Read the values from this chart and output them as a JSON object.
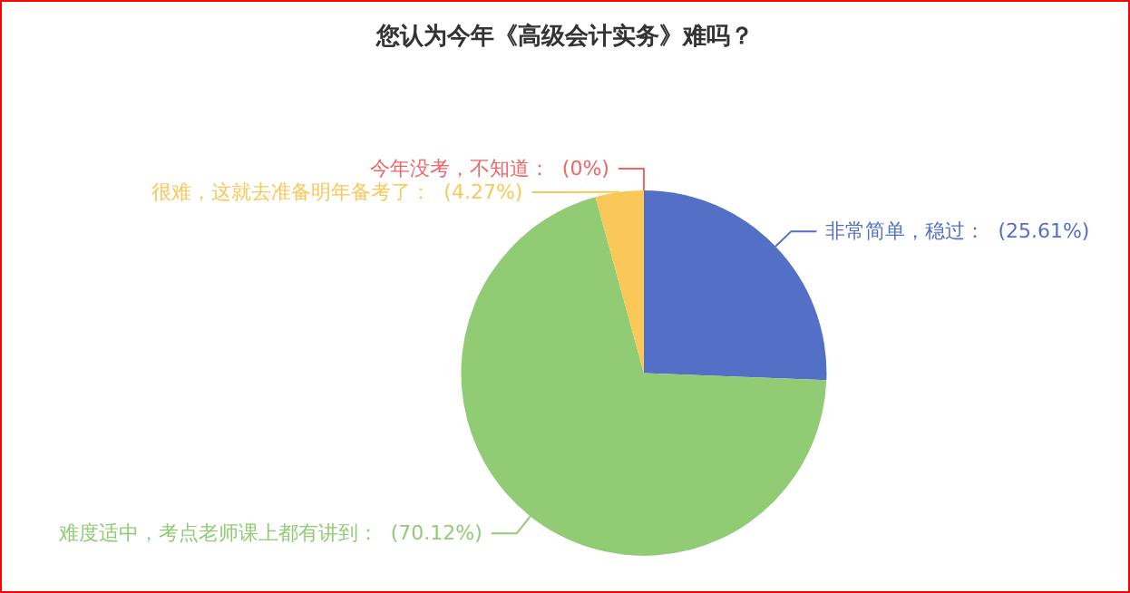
{
  "chart_data": {
    "type": "pie",
    "title": "您认为今年《高级会计实务》难吗？",
    "categories": [
      "非常简单，稳过",
      "难度适中，考点老师课上都有讲到",
      "很难，这就去准备明年备考了",
      "今年没考，不知道"
    ],
    "values": [
      25.61,
      70.12,
      4.27,
      0
    ],
    "value_labels": [
      "(25.61%)",
      "(70.12%)",
      "(4.27%)",
      "(0%)"
    ],
    "colors": [
      "#5470c6",
      "#91cc75",
      "#fac858",
      "#ee6666"
    ]
  }
}
